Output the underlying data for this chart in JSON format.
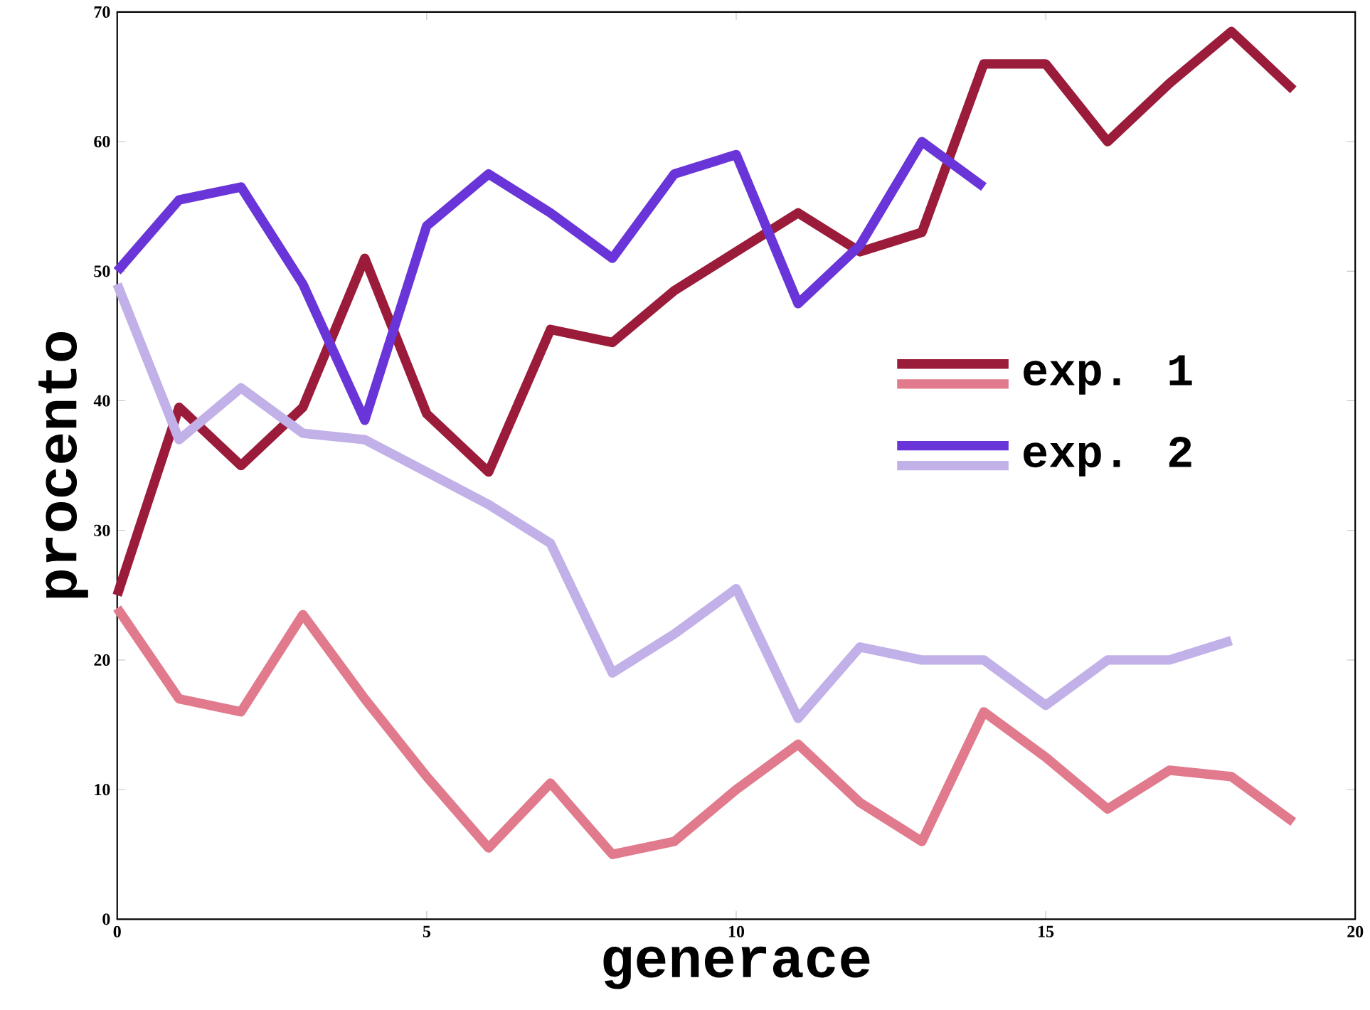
{
  "chart_data": {
    "type": "line",
    "xlabel": "generace",
    "ylabel": "procento",
    "x": [
      0,
      1,
      2,
      3,
      4,
      5,
      6,
      7,
      8,
      9,
      10,
      11,
      12,
      13,
      14,
      15,
      16,
      17,
      18,
      19
    ],
    "xlim": [
      0,
      20
    ],
    "ylim": [
      0,
      70
    ],
    "xticks": [
      0,
      5,
      10,
      15,
      20
    ],
    "yticks": [
      0,
      10,
      20,
      30,
      40,
      50,
      60,
      70
    ],
    "legend": "right",
    "grid": false,
    "marker": "none",
    "line_style": "solid",
    "series": [
      {
        "name": "exp. 1",
        "color": "#9b1b3a",
        "values": [
          25,
          39.5,
          35,
          39.5,
          51,
          39,
          34.5,
          45.5,
          44.5,
          48.5,
          51.5,
          54.5,
          51.5,
          53,
          66,
          66,
          60,
          64.5,
          68.5,
          64
        ]
      },
      {
        "color": "#e07a8c",
        "values": [
          24,
          17,
          16,
          23.5,
          17,
          11,
          5.5,
          10.5,
          5,
          6,
          10,
          13.5,
          9,
          6,
          16,
          12.5,
          8.5,
          11.5,
          11,
          7.5
        ]
      },
      {
        "name": "exp. 2",
        "color": "#6a35d8",
        "values": [
          50,
          55.5,
          56.5,
          49,
          38.5,
          53.5,
          57.5,
          54.5,
          51,
          57.5,
          59,
          47.5,
          52,
          60,
          56.5,
          null,
          null,
          null,
          null,
          null
        ]
      },
      {
        "color": "#c2b0e8",
        "values": [
          49,
          37,
          41,
          37.5,
          37,
          34.5,
          32,
          29,
          19,
          22,
          25.5,
          15.5,
          21,
          20,
          20,
          16.5,
          20,
          20,
          21.5,
          null
        ]
      }
    ]
  }
}
